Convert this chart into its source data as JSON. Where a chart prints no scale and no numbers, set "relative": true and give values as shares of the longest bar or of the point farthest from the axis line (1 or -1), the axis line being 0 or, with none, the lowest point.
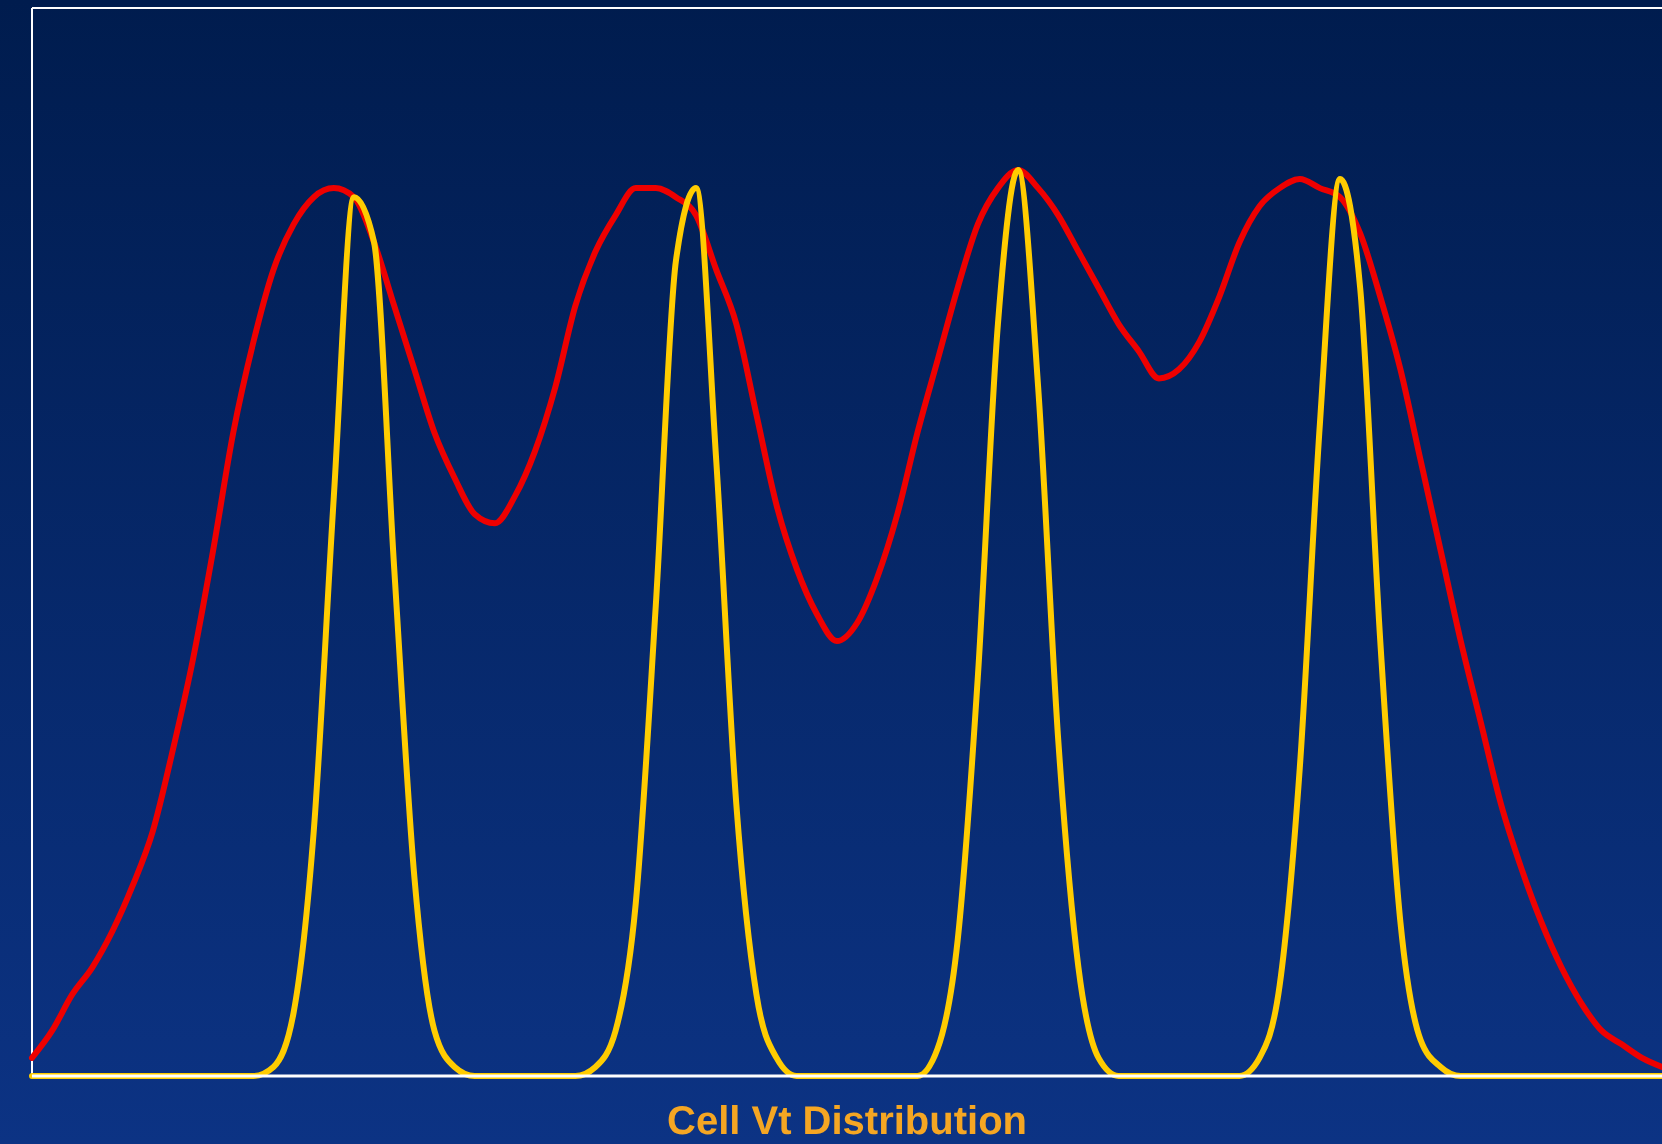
{
  "chart_data": {
    "type": "line",
    "xlabel": "Cell Vt Distribution",
    "relative": true,
    "categories": [
      null,
      null,
      null,
      null,
      null,
      null,
      null,
      null,
      null,
      null,
      null,
      null,
      null,
      null,
      null,
      null,
      null,
      null,
      null,
      null,
      null,
      null,
      null,
      null,
      null,
      null,
      null,
      null,
      null,
      null,
      null,
      null,
      null,
      null,
      null,
      null,
      null,
      null,
      null,
      null,
      null,
      null,
      null,
      null,
      null,
      null,
      null,
      null,
      null,
      null,
      null,
      null,
      null,
      null,
      null,
      null,
      null,
      null,
      null,
      null,
      null,
      null,
      null,
      null,
      null,
      null,
      null,
      null,
      null,
      null,
      null,
      null,
      null,
      null,
      null,
      null,
      null,
      null,
      null,
      null,
      null,
      null
    ],
    "series": [
      {
        "color": "#ee0000",
        "values": [
          0.02,
          0.05,
          0.09,
          0.12,
          0.16,
          0.21,
          0.27,
          0.36,
          0.46,
          0.58,
          0.71,
          0.81,
          0.89,
          0.94,
          0.97,
          0.98,
          0.97,
          0.92,
          0.85,
          0.78,
          0.71,
          0.66,
          0.62,
          0.61,
          0.64,
          0.69,
          0.76,
          0.85,
          0.91,
          0.95,
          0.98,
          0.98,
          0.97,
          0.95,
          0.89,
          0.83,
          0.73,
          0.63,
          0.56,
          0.51,
          0.48,
          0.5,
          0.55,
          0.62,
          0.71,
          0.79,
          0.87,
          0.94,
          0.98,
          1.0,
          0.98,
          0.95,
          0.91,
          0.87,
          0.83,
          0.8,
          0.77,
          0.78,
          0.81,
          0.86,
          0.92,
          0.96,
          0.98,
          0.99,
          0.98,
          0.97,
          0.93,
          0.86,
          0.78,
          0.68,
          0.58,
          0.48,
          0.39,
          0.3,
          0.23,
          0.17,
          0.12,
          0.08,
          0.05,
          0.035,
          0.02,
          0.01
        ]
      },
      {
        "color": "#ffcc00",
        "values": [
          0,
          0,
          0,
          0,
          0,
          0,
          0,
          0,
          0,
          0,
          0,
          0,
          0.01,
          0.07,
          0.27,
          0.64,
          0.97,
          0.92,
          0.56,
          0.22,
          0.05,
          0.01,
          0,
          0,
          0,
          0,
          0,
          0,
          0.01,
          0.05,
          0.19,
          0.52,
          0.9,
          0.98,
          0.68,
          0.3,
          0.09,
          0.02,
          0,
          0,
          0,
          0,
          0,
          0,
          0,
          0.03,
          0.15,
          0.44,
          0.83,
          1.0,
          0.76,
          0.37,
          0.12,
          0.02,
          0,
          0,
          0,
          0,
          0,
          0,
          0,
          0.02,
          0.1,
          0.34,
          0.72,
          0.99,
          0.87,
          0.48,
          0.17,
          0.04,
          0.01,
          0,
          0,
          0,
          0,
          0,
          0,
          0,
          0,
          0,
          0,
          0
        ]
      }
    ]
  }
}
